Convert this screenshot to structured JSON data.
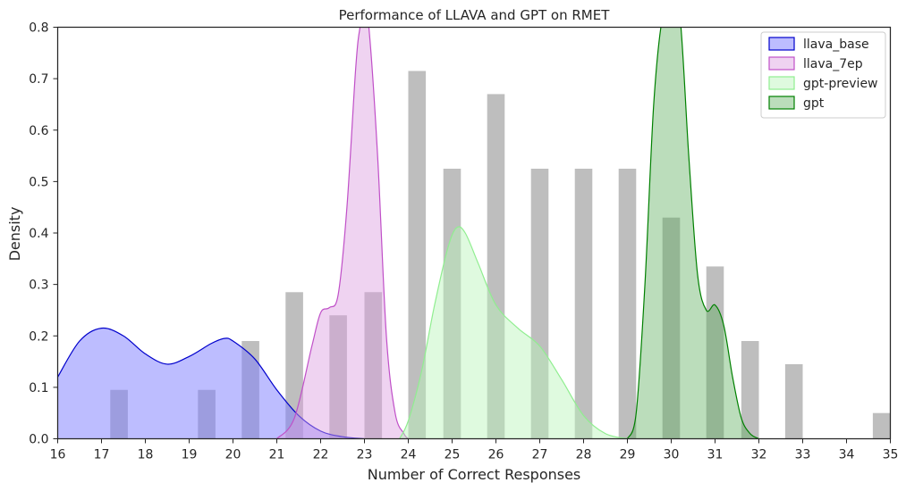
{
  "chart_data": {
    "type": "area",
    "title": "Performance of LLAVA and GPT on RMET",
    "xlabel": "Number of Correct Responses",
    "ylabel": "Density",
    "xlim": [
      16,
      35
    ],
    "ylim": [
      0,
      0.8
    ],
    "x_ticks": [
      "16",
      "17",
      "18",
      "19",
      "20",
      "21",
      "22",
      "23",
      "24",
      "25",
      "26",
      "27",
      "28",
      "29",
      "30",
      "31",
      "32",
      "33",
      "34",
      "35"
    ],
    "y_ticks": [
      "0.0",
      "0.1",
      "0.2",
      "0.3",
      "0.4",
      "0.5",
      "0.6",
      "0.7",
      "0.8"
    ],
    "grid": false,
    "legend_position": "top-right",
    "histogram": {
      "color": "#bebebe",
      "bin_width": 0.4,
      "bins": [
        {
          "start": 17.2,
          "value": 0.095
        },
        {
          "start": 19.2,
          "value": 0.095
        },
        {
          "start": 20.2,
          "value": 0.19
        },
        {
          "start": 21.2,
          "value": 0.285
        },
        {
          "start": 22.2,
          "value": 0.24
        },
        {
          "start": 22.2,
          "value": 0.0
        },
        {
          "start": 23.0,
          "value": 0.285
        },
        {
          "start": 24.0,
          "value": 0.715
        },
        {
          "start": 24.8,
          "value": 0.525
        },
        {
          "start": 25.8,
          "value": 0.67
        },
        {
          "start": 26.8,
          "value": 0.525
        },
        {
          "start": 27.8,
          "value": 0.525
        },
        {
          "start": 28.8,
          "value": 0.525
        },
        {
          "start": 29.8,
          "value": 0.43
        },
        {
          "start": 30.8,
          "value": 0.335
        },
        {
          "start": 31.6,
          "value": 0.19
        },
        {
          "start": 32.6,
          "value": 0.145
        },
        {
          "start": 34.6,
          "value": 0.05
        }
      ]
    },
    "series": [
      {
        "name": "llava_base",
        "line_color": "#0000cc",
        "fill_color": "#7b7bff",
        "fill_opacity": 0.5,
        "x": [
          16.0,
          16.5,
          17.0,
          17.5,
          18.0,
          18.5,
          19.0,
          19.5,
          19.8,
          20.0,
          20.5,
          21.0,
          21.5,
          22.0,
          22.5,
          23.0
        ],
        "y": [
          0.12,
          0.19,
          0.215,
          0.2,
          0.165,
          0.145,
          0.16,
          0.185,
          0.195,
          0.19,
          0.155,
          0.095,
          0.045,
          0.015,
          0.004,
          0.0
        ]
      },
      {
        "name": "llava_7ep",
        "line_color": "#c050c8",
        "fill_color": "#dc9ee0",
        "fill_opacity": 0.45,
        "x": [
          21.0,
          21.4,
          21.8,
          22.0,
          22.2,
          22.4,
          22.6,
          22.8,
          22.9,
          23.0,
          23.1,
          23.3,
          23.5,
          23.7,
          23.9,
          24.0
        ],
        "y": [
          0.0,
          0.04,
          0.18,
          0.245,
          0.255,
          0.28,
          0.45,
          0.72,
          0.8,
          0.82,
          0.8,
          0.55,
          0.2,
          0.05,
          0.01,
          0.0
        ]
      },
      {
        "name": "gpt-preview",
        "line_color": "#90ee90",
        "fill_color": "#b8f5b8",
        "fill_opacity": 0.45,
        "x": [
          23.8,
          24.0,
          24.3,
          24.6,
          24.9,
          25.1,
          25.3,
          25.6,
          26.0,
          26.5,
          27.0,
          27.5,
          28.0,
          28.5,
          29.0
        ],
        "y": [
          0.0,
          0.035,
          0.13,
          0.26,
          0.37,
          0.41,
          0.4,
          0.34,
          0.26,
          0.215,
          0.18,
          0.115,
          0.045,
          0.01,
          0.0
        ]
      },
      {
        "name": "gpt",
        "line_color": "#008000",
        "fill_color": "#56ab56",
        "fill_opacity": 0.4,
        "x": [
          29.0,
          29.2,
          29.4,
          29.6,
          29.8,
          30.0,
          30.2,
          30.4,
          30.6,
          30.8,
          31.0,
          31.2,
          31.4,
          31.6,
          31.8,
          32.0
        ],
        "y": [
          0.0,
          0.05,
          0.3,
          0.65,
          0.82,
          0.85,
          0.82,
          0.55,
          0.32,
          0.25,
          0.26,
          0.22,
          0.12,
          0.04,
          0.01,
          0.0
        ]
      }
    ]
  }
}
